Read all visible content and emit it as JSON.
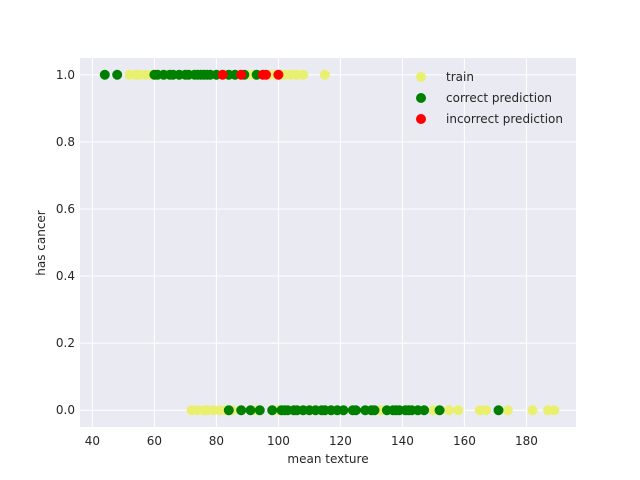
{
  "chart_data": {
    "type": "scatter",
    "xlabel": "mean texture",
    "ylabel": "has cancer",
    "xlim": [
      36,
      196
    ],
    "ylim": [
      -0.05,
      1.05
    ],
    "x_ticks": [
      40,
      60,
      80,
      100,
      120,
      140,
      160,
      180
    ],
    "y_ticks": [
      0.0,
      0.2,
      0.4,
      0.6,
      0.8,
      1.0
    ],
    "x_tick_labels": [
      "40",
      "60",
      "80",
      "100",
      "120",
      "140",
      "160",
      "180"
    ],
    "y_tick_labels": [
      "0.0",
      "0.2",
      "0.4",
      "0.6",
      "0.8",
      "1.0"
    ],
    "grid": true,
    "legend_position": "top-right",
    "series": [
      {
        "name": "train",
        "color": "#e8f06e",
        "points": [
          [
            52,
            1
          ],
          [
            54,
            1
          ],
          [
            55,
            1
          ],
          [
            57,
            1
          ],
          [
            59,
            1
          ],
          [
            60,
            1
          ],
          [
            61,
            1
          ],
          [
            63,
            1
          ],
          [
            64,
            1
          ],
          [
            66,
            1
          ],
          [
            68,
            1
          ],
          [
            70,
            1
          ],
          [
            72,
            1
          ],
          [
            74,
            1
          ],
          [
            76,
            1
          ],
          [
            78,
            1
          ],
          [
            80,
            1
          ],
          [
            83,
            1
          ],
          [
            86,
            1
          ],
          [
            88,
            1
          ],
          [
            90,
            1
          ],
          [
            92,
            1
          ],
          [
            95,
            1
          ],
          [
            97,
            1
          ],
          [
            99,
            1
          ],
          [
            101,
            1
          ],
          [
            102,
            1
          ],
          [
            104,
            1
          ],
          [
            106,
            1
          ],
          [
            108,
            1
          ],
          [
            115,
            1
          ],
          [
            72,
            0
          ],
          [
            74,
            0
          ],
          [
            76,
            0
          ],
          [
            77,
            0
          ],
          [
            79,
            0
          ],
          [
            81,
            0
          ],
          [
            83,
            0
          ],
          [
            85,
            0
          ],
          [
            88,
            0
          ],
          [
            93,
            0
          ],
          [
            100,
            0
          ],
          [
            105,
            0
          ],
          [
            110,
            0
          ],
          [
            117,
            0
          ],
          [
            121,
            0
          ],
          [
            124,
            0
          ],
          [
            133,
            0
          ],
          [
            138,
            0
          ],
          [
            145,
            0
          ],
          [
            150,
            0
          ],
          [
            155,
            0
          ],
          [
            158,
            0
          ],
          [
            165,
            0
          ],
          [
            167,
            0
          ],
          [
            174,
            0
          ],
          [
            182,
            0
          ],
          [
            187,
            0
          ],
          [
            189,
            0
          ]
        ]
      },
      {
        "name": "correct prediction",
        "color": "#008000",
        "points": [
          [
            44,
            1
          ],
          [
            48,
            1
          ],
          [
            60,
            1
          ],
          [
            61,
            1
          ],
          [
            63,
            1
          ],
          [
            65,
            1
          ],
          [
            66,
            1
          ],
          [
            68,
            1
          ],
          [
            70,
            1
          ],
          [
            71,
            1
          ],
          [
            73,
            1
          ],
          [
            74,
            1
          ],
          [
            75,
            1
          ],
          [
            76,
            1
          ],
          [
            77,
            1
          ],
          [
            78,
            1
          ],
          [
            80,
            1
          ],
          [
            84,
            1
          ],
          [
            86,
            1
          ],
          [
            89,
            1
          ],
          [
            93,
            1
          ],
          [
            84,
            0
          ],
          [
            88,
            0
          ],
          [
            91,
            0
          ],
          [
            94,
            0
          ],
          [
            98,
            0
          ],
          [
            101,
            0
          ],
          [
            102,
            0
          ],
          [
            103,
            0
          ],
          [
            105,
            0
          ],
          [
            106,
            0
          ],
          [
            108,
            0
          ],
          [
            110,
            0
          ],
          [
            112,
            0
          ],
          [
            114,
            0
          ],
          [
            115,
            0
          ],
          [
            117,
            0
          ],
          [
            119,
            0
          ],
          [
            121,
            0
          ],
          [
            124,
            0
          ],
          [
            125,
            0
          ],
          [
            128,
            0
          ],
          [
            130,
            0
          ],
          [
            131,
            0
          ],
          [
            135,
            0
          ],
          [
            137,
            0
          ],
          [
            138,
            0
          ],
          [
            139,
            0
          ],
          [
            141,
            0
          ],
          [
            142,
            0
          ],
          [
            143,
            0
          ],
          [
            145,
            0
          ],
          [
            147,
            0
          ],
          [
            152,
            0
          ],
          [
            171,
            0
          ]
        ]
      },
      {
        "name": "incorrect prediction",
        "color": "#ff0000",
        "points": [
          [
            82,
            1
          ],
          [
            88,
            1
          ],
          [
            95,
            1
          ],
          [
            96,
            1
          ],
          [
            100,
            1
          ]
        ]
      }
    ]
  }
}
